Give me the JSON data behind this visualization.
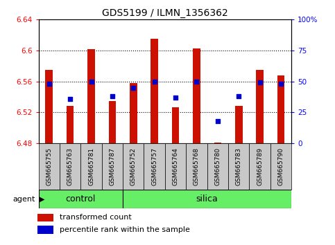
{
  "title": "GDS5199 / ILMN_1356362",
  "samples": [
    "GSM665755",
    "GSM665763",
    "GSM665781",
    "GSM665787",
    "GSM665752",
    "GSM665757",
    "GSM665764",
    "GSM665768",
    "GSM665780",
    "GSM665783",
    "GSM665789",
    "GSM665790"
  ],
  "transformed_count": [
    6.575,
    6.528,
    6.602,
    6.535,
    6.558,
    6.615,
    6.527,
    6.603,
    6.481,
    6.528,
    6.575,
    6.568
  ],
  "percentile_rank": [
    48,
    36,
    50,
    38,
    45,
    50,
    37,
    50,
    18,
    38,
    49,
    48
  ],
  "control_count": 4,
  "silica_count": 8,
  "y_min": 6.48,
  "y_max": 6.64,
  "y_ticks": [
    6.48,
    6.52,
    6.56,
    6.6,
    6.64
  ],
  "right_y_ticks": [
    0,
    25,
    50,
    75,
    100
  ],
  "bar_color": "#cc1100",
  "dot_color": "#0000cc",
  "label_bg_color": "#c8c8c8",
  "agent_color": "#66ee66",
  "plot_bg": "#ffffff",
  "bar_width": 0.35,
  "bar_bottom": 6.48,
  "title_fontsize": 10,
  "tick_fontsize": 7.5,
  "label_fontsize": 6.5,
  "agent_fontsize": 9
}
